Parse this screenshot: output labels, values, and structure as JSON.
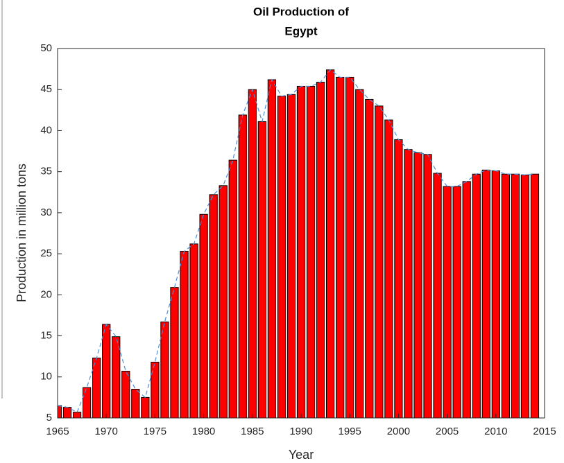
{
  "chart_data": {
    "type": "bar",
    "title": [
      "Oil Production of",
      "Egypt"
    ],
    "x_label": "Year",
    "y_label": "Production in million tons",
    "x": [
      1965,
      1966,
      1967,
      1968,
      1969,
      1970,
      1971,
      1972,
      1973,
      1974,
      1975,
      1976,
      1977,
      1978,
      1979,
      1980,
      1981,
      1982,
      1983,
      1984,
      1985,
      1986,
      1987,
      1988,
      1989,
      1990,
      1991,
      1992,
      1993,
      1994,
      1995,
      1996,
      1997,
      1998,
      1999,
      2000,
      2001,
      2002,
      2003,
      2004,
      2005,
      2006,
      2007,
      2008,
      2009,
      2010,
      2011,
      2012,
      2013,
      2014
    ],
    "series": [
      {
        "type": "bar",
        "color": "#ff0000",
        "values": [
          6.5,
          6.3,
          5.7,
          8.7,
          12.3,
          16.4,
          14.9,
          10.7,
          8.5,
          7.5,
          11.8,
          16.7,
          20.9,
          25.3,
          26.2,
          29.8,
          32.2,
          33.3,
          36.4,
          41.9,
          45.0,
          41.1,
          46.2,
          44.2,
          44.4,
          45.4,
          45.4,
          45.9,
          47.4,
          46.5,
          46.5,
          45.0,
          43.8,
          43.0,
          41.3,
          38.9,
          37.7,
          37.3,
          37.1,
          34.8,
          33.2,
          33.2,
          33.8,
          34.7,
          35.2,
          35.1,
          34.7,
          34.7,
          34.6,
          34.7
        ]
      },
      {
        "type": "line",
        "color": "#4a90d9",
        "dashed": true,
        "values": [
          6.5,
          6.3,
          5.7,
          8.7,
          12.3,
          16.4,
          14.9,
          10.7,
          8.5,
          7.5,
          11.8,
          16.7,
          20.9,
          25.3,
          26.2,
          29.8,
          32.2,
          33.3,
          36.4,
          41.9,
          45.0,
          41.1,
          46.2,
          44.2,
          44.4,
          45.4,
          45.4,
          45.9,
          47.4,
          46.5,
          46.5,
          45.0,
          43.8,
          43.0,
          41.3,
          38.9,
          37.7,
          37.3,
          37.1,
          34.8,
          33.2,
          33.2,
          33.8,
          34.7,
          35.2,
          35.1,
          34.7,
          34.7,
          34.6,
          34.7
        ]
      }
    ],
    "xlim": [
      1965,
      2015
    ],
    "xticks": [
      1965,
      1970,
      1975,
      1980,
      1985,
      1990,
      1995,
      2000,
      2005,
      2010,
      2015
    ],
    "ylim": [
      5,
      50
    ],
    "yticks": [
      5,
      10,
      15,
      20,
      25,
      30,
      35,
      40,
      45,
      50
    ],
    "grid": false
  }
}
